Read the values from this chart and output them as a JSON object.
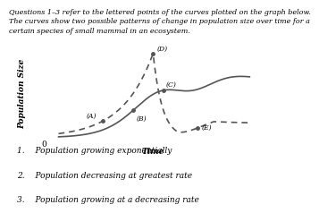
{
  "title_line1": "Questions 1–3 refer to the lettered points of the curves plotted on the graph below.",
  "title_line2": "The curves show two possible patterns of change in population size over time for a",
  "title_line3": "certain species of small mammal in an ecosystem.",
  "xlabel": "Time",
  "ylabel": "Population Size",
  "questions": [
    "1.  Population growing exponentially",
    "2.  Population decreasing at greatest rate",
    "3.  Population growing at a decreasing rate"
  ],
  "background_color": "#ffffff",
  "curve_color": "#555555",
  "title_fontsize": 5.8,
  "axis_label_fontsize": 6.5,
  "point_label_fontsize": 5.5,
  "question_fontsize": 6.5
}
